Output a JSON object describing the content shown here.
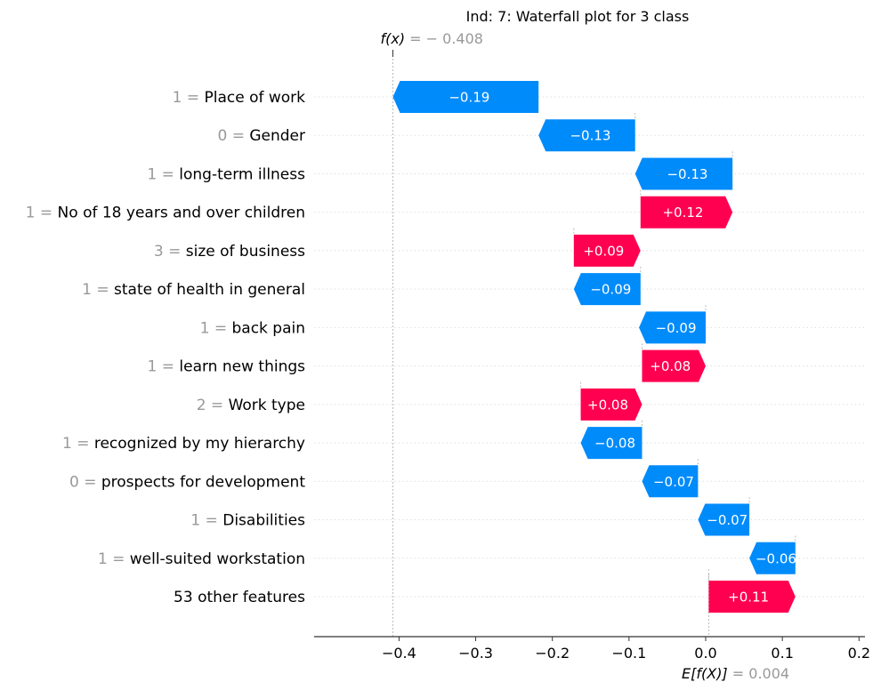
{
  "chart_data": {
    "type": "waterfall",
    "title": "Ind: 7: Waterfall plot for 3 class",
    "fx_label": "f(x) = − 0.408",
    "fx_value": -0.408,
    "efx_label": "E[f(X)] = 0.004",
    "efx_value": 0.004,
    "xlim": [
      -0.5,
      0.2
    ],
    "x_ticks": [
      -0.4,
      -0.3,
      -0.2,
      -0.1,
      0.0,
      0.1,
      0.2
    ],
    "x_tick_labels": [
      "−0.4",
      "−0.3",
      "−0.2",
      "−0.1",
      "0.0",
      "0.1",
      "0.2"
    ],
    "features": [
      {
        "value": "1 =",
        "name": "Place of work",
        "start": -0.218,
        "end": -0.408,
        "label": "−0.19"
      },
      {
        "value": "0 =",
        "name": "Gender",
        "start": -0.092,
        "end": -0.218,
        "label": "−0.13"
      },
      {
        "value": "1 =",
        "name": "long-term illness",
        "start": 0.035,
        "end": -0.092,
        "label": "−0.13"
      },
      {
        "value": "1 =",
        "name": "No of 18 years and over children",
        "start": -0.085,
        "end": 0.035,
        "label": "+0.12"
      },
      {
        "value": "3 =",
        "name": "size of business",
        "start": -0.172,
        "end": -0.085,
        "label": "+0.09"
      },
      {
        "value": "1 =",
        "name": "state of health in general",
        "start": -0.085,
        "end": -0.172,
        "label": "−0.09"
      },
      {
        "value": "1 =",
        "name": "back pain",
        "start": 0.0,
        "end": -0.087,
        "label": "−0.09"
      },
      {
        "value": "1 =",
        "name": "learn new things",
        "start": -0.083,
        "end": 0.0,
        "label": "+0.08"
      },
      {
        "value": "2 =",
        "name": "Work type",
        "start": -0.163,
        "end": -0.083,
        "label": "+0.08"
      },
      {
        "value": "1 =",
        "name": "recognized by my hierarchy",
        "start": -0.083,
        "end": -0.163,
        "label": "−0.08"
      },
      {
        "value": "0 =",
        "name": "prospects for development",
        "start": -0.01,
        "end": -0.083,
        "label": "−0.07"
      },
      {
        "value": "1 =",
        "name": "Disabilities",
        "start": 0.057,
        "end": -0.01,
        "label": "−0.07"
      },
      {
        "value": "1 =",
        "name": "well-suited workstation",
        "start": 0.117,
        "end": 0.057,
        "label": "−0.06"
      },
      {
        "value": "",
        "name": "53 other features",
        "start": 0.004,
        "end": 0.117,
        "label": "+0.11"
      }
    ],
    "colors": {
      "positive": "#ff0051",
      "negative": "#008bfb",
      "value_text": "#999999",
      "label_text": "#000000"
    }
  }
}
